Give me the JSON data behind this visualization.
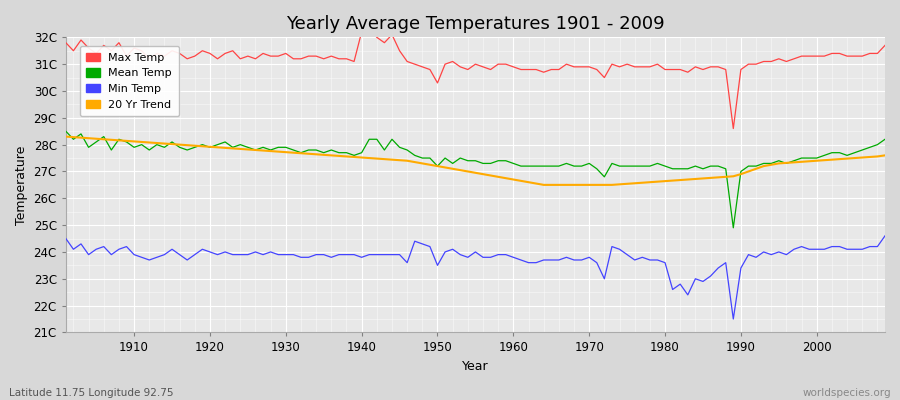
{
  "title": "Yearly Average Temperatures 1901 - 2009",
  "xlabel": "Year",
  "ylabel": "Temperature",
  "footnote_left": "Latitude 11.75 Longitude 92.75",
  "footnote_right": "worldspecies.org",
  "years": [
    1901,
    1902,
    1903,
    1904,
    1905,
    1906,
    1907,
    1908,
    1909,
    1910,
    1911,
    1912,
    1913,
    1914,
    1915,
    1916,
    1917,
    1918,
    1919,
    1920,
    1921,
    1922,
    1923,
    1924,
    1925,
    1926,
    1927,
    1928,
    1929,
    1930,
    1931,
    1932,
    1933,
    1934,
    1935,
    1936,
    1937,
    1938,
    1939,
    1940,
    1941,
    1942,
    1943,
    1944,
    1945,
    1946,
    1947,
    1948,
    1949,
    1950,
    1951,
    1952,
    1953,
    1954,
    1955,
    1956,
    1957,
    1958,
    1959,
    1960,
    1961,
    1962,
    1963,
    1964,
    1965,
    1966,
    1967,
    1968,
    1969,
    1970,
    1971,
    1972,
    1973,
    1974,
    1975,
    1976,
    1977,
    1978,
    1979,
    1980,
    1981,
    1982,
    1983,
    1984,
    1985,
    1986,
    1987,
    1988,
    1989,
    1990,
    1991,
    1992,
    1993,
    1994,
    1995,
    1996,
    1997,
    1998,
    1999,
    2000,
    2001,
    2002,
    2003,
    2004,
    2005,
    2006,
    2007,
    2008,
    2009
  ],
  "max_temp": [
    31.8,
    31.5,
    31.9,
    31.6,
    31.4,
    31.7,
    31.5,
    31.8,
    31.3,
    31.6,
    31.5,
    31.2,
    31.4,
    31.3,
    31.5,
    31.4,
    31.2,
    31.3,
    31.5,
    31.4,
    31.2,
    31.4,
    31.5,
    31.2,
    31.3,
    31.2,
    31.4,
    31.3,
    31.3,
    31.4,
    31.2,
    31.2,
    31.3,
    31.3,
    31.2,
    31.3,
    31.2,
    31.2,
    31.1,
    32.2,
    32.4,
    32.0,
    31.8,
    32.1,
    31.5,
    31.1,
    31.0,
    30.9,
    30.8,
    30.3,
    31.0,
    31.1,
    30.9,
    30.8,
    31.0,
    30.9,
    30.8,
    31.0,
    31.0,
    30.9,
    30.8,
    30.8,
    30.8,
    30.7,
    30.8,
    30.8,
    31.0,
    30.9,
    30.9,
    30.9,
    30.8,
    30.5,
    31.0,
    30.9,
    31.0,
    30.9,
    30.9,
    30.9,
    31.0,
    30.8,
    30.8,
    30.8,
    30.7,
    30.9,
    30.8,
    30.9,
    30.9,
    30.8,
    28.6,
    30.8,
    31.0,
    31.0,
    31.1,
    31.1,
    31.2,
    31.1,
    31.2,
    31.3,
    31.3,
    31.3,
    31.3,
    31.4,
    31.4,
    31.3,
    31.3,
    31.3,
    31.4,
    31.4,
    31.7
  ],
  "mean_temp": [
    28.5,
    28.2,
    28.4,
    27.9,
    28.1,
    28.3,
    27.8,
    28.2,
    28.1,
    27.9,
    28.0,
    27.8,
    28.0,
    27.9,
    28.1,
    27.9,
    27.8,
    27.9,
    28.0,
    27.9,
    28.0,
    28.1,
    27.9,
    28.0,
    27.9,
    27.8,
    27.9,
    27.8,
    27.9,
    27.9,
    27.8,
    27.7,
    27.8,
    27.8,
    27.7,
    27.8,
    27.7,
    27.7,
    27.6,
    27.7,
    28.2,
    28.2,
    27.8,
    28.2,
    27.9,
    27.8,
    27.6,
    27.5,
    27.5,
    27.2,
    27.5,
    27.3,
    27.5,
    27.4,
    27.4,
    27.3,
    27.3,
    27.4,
    27.4,
    27.3,
    27.2,
    27.2,
    27.2,
    27.2,
    27.2,
    27.2,
    27.3,
    27.2,
    27.2,
    27.3,
    27.1,
    26.8,
    27.3,
    27.2,
    27.2,
    27.2,
    27.2,
    27.2,
    27.3,
    27.2,
    27.1,
    27.1,
    27.1,
    27.2,
    27.1,
    27.2,
    27.2,
    27.1,
    24.9,
    27.0,
    27.2,
    27.2,
    27.3,
    27.3,
    27.4,
    27.3,
    27.4,
    27.5,
    27.5,
    27.5,
    27.6,
    27.7,
    27.7,
    27.6,
    27.7,
    27.8,
    27.9,
    28.0,
    28.2
  ],
  "min_temp": [
    24.5,
    24.1,
    24.3,
    23.9,
    24.1,
    24.2,
    23.9,
    24.1,
    24.2,
    23.9,
    23.8,
    23.7,
    23.8,
    23.9,
    24.1,
    23.9,
    23.7,
    23.9,
    24.1,
    24.0,
    23.9,
    24.0,
    23.9,
    23.9,
    23.9,
    24.0,
    23.9,
    24.0,
    23.9,
    23.9,
    23.9,
    23.8,
    23.8,
    23.9,
    23.9,
    23.8,
    23.9,
    23.9,
    23.9,
    23.8,
    23.9,
    23.9,
    23.9,
    23.9,
    23.9,
    23.6,
    24.4,
    24.3,
    24.2,
    23.5,
    24.0,
    24.1,
    23.9,
    23.8,
    24.0,
    23.8,
    23.8,
    23.9,
    23.9,
    23.8,
    23.7,
    23.6,
    23.6,
    23.7,
    23.7,
    23.7,
    23.8,
    23.7,
    23.7,
    23.8,
    23.6,
    23.0,
    24.2,
    24.1,
    23.9,
    23.7,
    23.8,
    23.7,
    23.7,
    23.6,
    22.6,
    22.8,
    22.4,
    23.0,
    22.9,
    23.1,
    23.4,
    23.6,
    21.5,
    23.4,
    23.9,
    23.8,
    24.0,
    23.9,
    24.0,
    23.9,
    24.1,
    24.2,
    24.1,
    24.1,
    24.1,
    24.2,
    24.2,
    24.1,
    24.1,
    24.1,
    24.2,
    24.2,
    24.6
  ],
  "trend_20yr": [
    28.3,
    28.28,
    28.26,
    28.24,
    28.22,
    28.2,
    28.18,
    28.16,
    28.14,
    28.12,
    28.1,
    28.08,
    28.06,
    28.04,
    28.02,
    28.0,
    27.98,
    27.96,
    27.94,
    27.92,
    27.9,
    27.88,
    27.86,
    27.84,
    27.82,
    27.8,
    27.78,
    27.76,
    27.74,
    27.72,
    27.7,
    27.68,
    27.66,
    27.64,
    27.62,
    27.6,
    27.58,
    27.56,
    27.54,
    27.52,
    27.5,
    27.48,
    27.46,
    27.44,
    27.42,
    27.4,
    27.35,
    27.3,
    27.25,
    27.2,
    27.15,
    27.1,
    27.05,
    27.0,
    26.95,
    26.9,
    26.85,
    26.8,
    26.75,
    26.7,
    26.65,
    26.6,
    26.55,
    26.5,
    26.5,
    26.5,
    26.5,
    26.5,
    26.5,
    26.5,
    26.5,
    26.5,
    26.5,
    26.52,
    26.54,
    26.56,
    26.58,
    26.6,
    26.62,
    26.64,
    26.66,
    26.68,
    26.7,
    26.72,
    26.74,
    26.76,
    26.78,
    26.8,
    26.82,
    26.9,
    27.0,
    27.1,
    27.2,
    27.25,
    27.3,
    27.32,
    27.34,
    27.36,
    27.38,
    27.4,
    27.42,
    27.44,
    27.46,
    27.48,
    27.5,
    27.52,
    27.54,
    27.56,
    27.6
  ],
  "max_color": "#ff4444",
  "mean_color": "#00aa00",
  "min_color": "#4444ff",
  "trend_color": "#ffaa00",
  "bg_color": "#d8d8d8",
  "plot_bg": "#e8e8e8",
  "ylim_min": 21,
  "ylim_max": 32,
  "yticks": [
    21,
    22,
    23,
    24,
    25,
    26,
    27,
    28,
    29,
    30,
    31,
    32
  ],
  "ytick_labels": [
    "21C",
    "22C",
    "23C",
    "24C",
    "25C",
    "26C",
    "27C",
    "28C",
    "29C",
    "30C",
    "31C",
    "32C"
  ],
  "xlim_min": 1901,
  "xlim_max": 2009,
  "xticks": [
    1910,
    1920,
    1930,
    1940,
    1950,
    1960,
    1970,
    1980,
    1990,
    2000
  ]
}
